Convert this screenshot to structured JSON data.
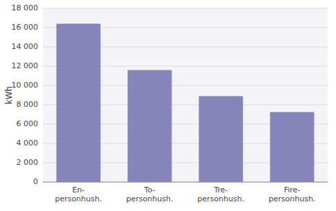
{
  "chart_data": {
    "type": "bar",
    "categories": [
      "En-\npersonhush.",
      "To-\npersonhush.",
      "Tre-\npersonhush.",
      "Fire-\npersonhush."
    ],
    "values": [
      16400,
      11600,
      8900,
      7250
    ],
    "color": "#8585bb",
    "ylabel": "kWh",
    "ylim": [
      0,
      18000
    ],
    "yticks": [
      0,
      {
        "value": 2000,
        "label": "2 000"
      },
      {
        "value": 4000,
        "label": "4 000"
      },
      {
        "value": 6000,
        "label": "6 000"
      },
      {
        "value": 8000,
        "label": "8 000"
      },
      {
        "value": 10000,
        "label": "10 000"
      },
      {
        "value": 12000,
        "label": "12 000"
      },
      {
        "value": 14000,
        "label": "14 000"
      },
      {
        "value": 16000,
        "label": "16 000"
      },
      {
        "value": 18000,
        "label": "18 000"
      }
    ],
    "grid": true
  }
}
